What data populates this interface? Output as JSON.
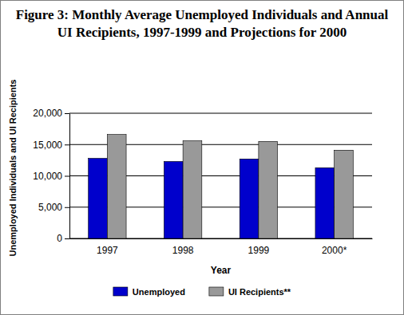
{
  "chart_data": {
    "type": "bar",
    "title": "Figure 3: Monthly Average Unemployed Individuals and Annual UI Recipients, 1997-1999 and Projections for 2000",
    "x_label": "Year",
    "y_label": "Unemployed Individuals and UI Recipients",
    "categories": [
      "1997",
      "1998",
      "1999",
      "2000*"
    ],
    "series": [
      {
        "name": "Unemployed",
        "color": "#0000cc",
        "values": [
          12800,
          12300,
          12700,
          11300
        ]
      },
      {
        "name": "UI Recipients**",
        "color": "#999999",
        "values": [
          16600,
          15600,
          15500,
          14100
        ]
      }
    ],
    "ylim": [
      0,
      20000
    ],
    "yticks": [
      0,
      {
        "value": 5000,
        "label": "5,000"
      },
      {
        "value": 10000,
        "label": "10,000"
      },
      {
        "value": 15000,
        "label": "15,000"
      },
      {
        "value": 20000,
        "label": "20,000"
      }
    ],
    "grid": true,
    "legend": "bottom"
  }
}
